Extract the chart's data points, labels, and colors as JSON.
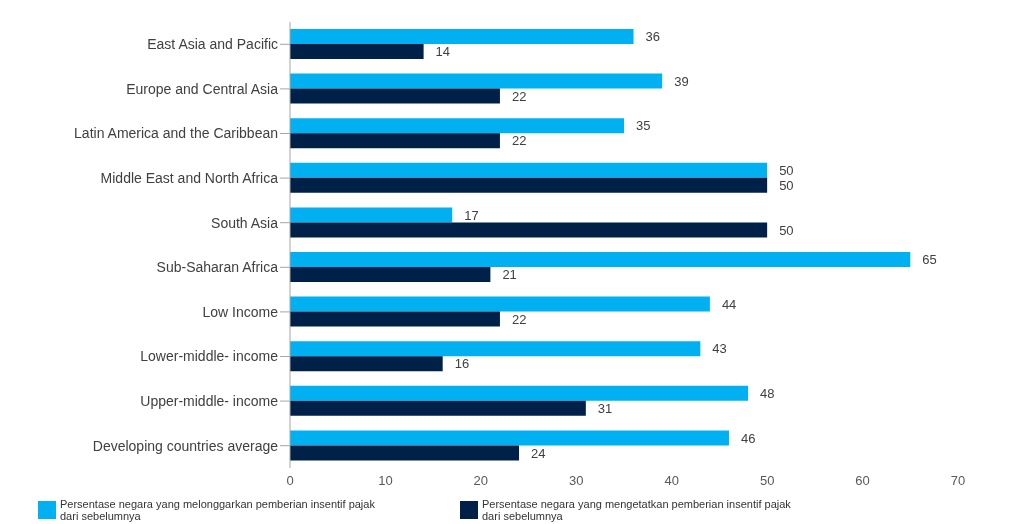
{
  "chart_data": {
    "type": "bar",
    "orientation": "horizontal",
    "categories": [
      "East Asia and Pacific",
      "Europe and Central Asia",
      "Latin America and the Caribbean",
      "Middle East and North Africa",
      "South Asia",
      "Sub-Saharan Africa",
      "Low Income",
      "Lower-middle- income",
      "Upper-middle- income",
      "Developing countries average"
    ],
    "series": [
      {
        "name": "Persentase negara yang melonggarkan pemberian insentif pajak dari sebelumnya",
        "color": "#00b0f0",
        "values": [
          36,
          39,
          35,
          50,
          17,
          65,
          44,
          43,
          48,
          46
        ]
      },
      {
        "name": "Persentase negara yang mengetatkan pemberian insentif pajak dari sebelumnya",
        "color": "#002147",
        "values": [
          14,
          22,
          22,
          50,
          50,
          21,
          22,
          16,
          31,
          24
        ]
      }
    ],
    "xlim": [
      0,
      70
    ],
    "xticks": [
      0,
      10,
      20,
      30,
      40,
      50,
      60,
      70
    ],
    "data_labels": true,
    "legend": "bottom",
    "grid": false
  }
}
